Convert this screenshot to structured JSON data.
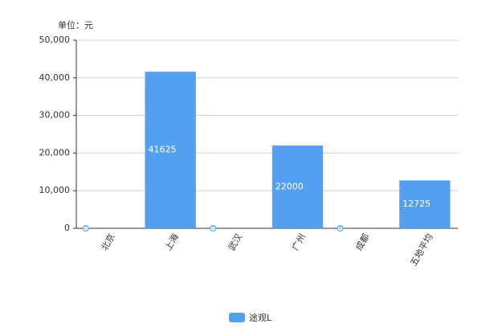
{
  "chart_data": {
    "type": "bar",
    "ylabel": "单位：元",
    "categories": [
      "北京",
      "上海",
      "武汉",
      "广州",
      "成都",
      "五地平均"
    ],
    "series": [
      {
        "name": "途观L",
        "color": "#559ff0",
        "values": [
          0,
          41625,
          0,
          22000,
          0,
          12725
        ]
      }
    ],
    "ylim": [
      0,
      50000
    ],
    "yticks": [
      0,
      {
        "value": 10000,
        "label": "10,000"
      },
      {
        "value": 20000,
        "label": "20,000"
      },
      {
        "value": 30000,
        "label": "30,000"
      },
      {
        "value": 40000,
        "label": "40,000"
      },
      {
        "value": 50000,
        "label": "50,000"
      }
    ],
    "grid": true,
    "legend": "bottom"
  }
}
